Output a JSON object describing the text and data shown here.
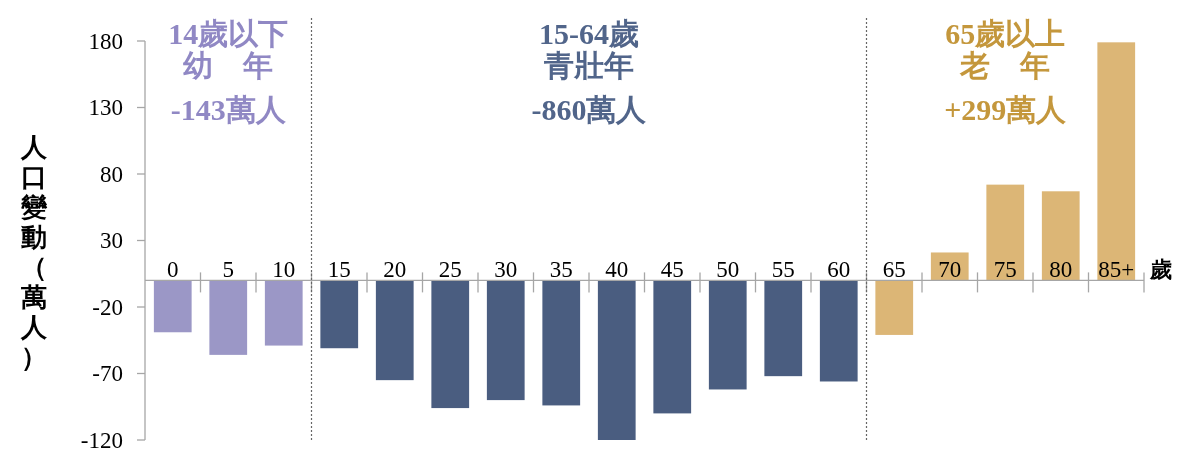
{
  "chart_data": {
    "type": "bar",
    "categories": [
      "0",
      "5",
      "10",
      "15",
      "20",
      "25",
      "30",
      "35",
      "40",
      "45",
      "50",
      "55",
      "60",
      "65",
      "70",
      "75",
      "80",
      "85+"
    ],
    "values": [
      -39,
      -56,
      -49,
      -51,
      -75,
      -96,
      -90,
      -94,
      -120,
      -100,
      -82,
      -72,
      -76,
      -41,
      21,
      72,
      67,
      179
    ],
    "colors": [
      "#9b97c6",
      "#9b97c6",
      "#9b97c6",
      "#4a5d80",
      "#4a5d80",
      "#4a5d80",
      "#4a5d80",
      "#4a5d80",
      "#4a5d80",
      "#4a5d80",
      "#4a5d80",
      "#4a5d80",
      "#4a5d80",
      "#dcb676",
      "#dcb676",
      "#dcb676",
      "#dcb676",
      "#dcb676"
    ],
    "ylim": [
      -120,
      180
    ],
    "yticks": [
      -120,
      -70,
      -20,
      30,
      80,
      130,
      180
    ],
    "ylabel": "人口變動（萬人）",
    "xlabel": "歲",
    "annotations": [
      "14歲以下",
      "幼　年",
      "-143萬人",
      "15-64歲",
      "青壯年",
      "-860萬人",
      "65歲以上",
      "老　年",
      "+299萬人"
    ]
  }
}
